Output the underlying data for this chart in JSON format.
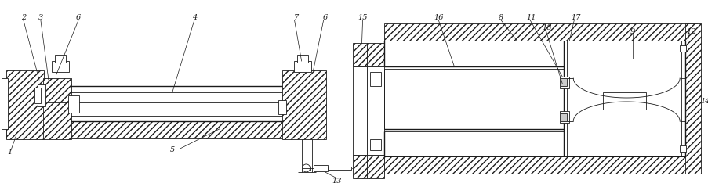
{
  "bg_color": "#ffffff",
  "line_color": "#1a1a1a",
  "fig_width": 9.04,
  "fig_height": 2.48,
  "dpi": 100
}
